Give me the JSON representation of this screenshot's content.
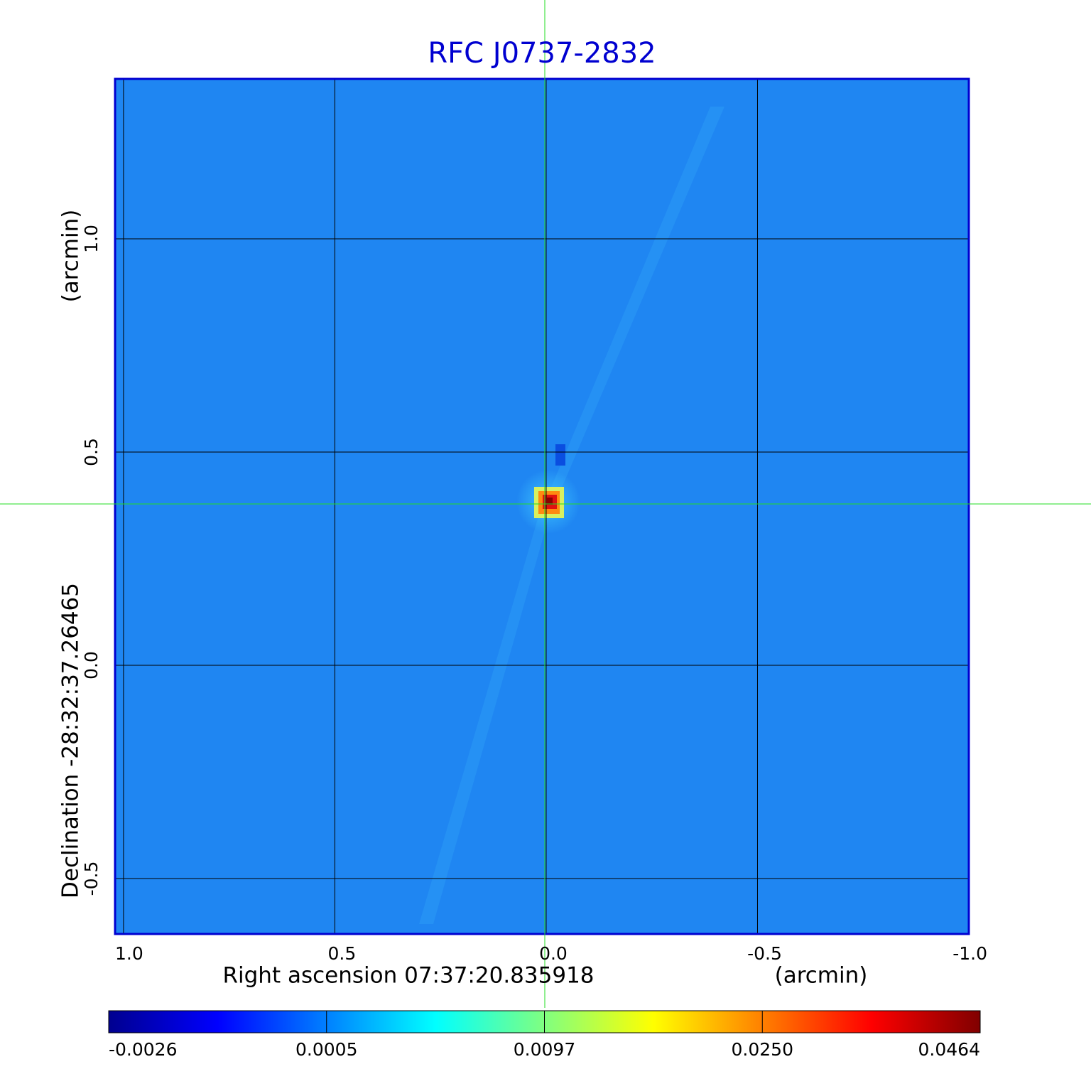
{
  "chart_data": {
    "type": "image",
    "title": "RFC J0737-2832",
    "x_label": "Right ascension  07:37:20.835918",
    "x_unit": "(arcmin)",
    "y_label": "Declination  -28:32:37.26465",
    "y_unit": "(arcmin)",
    "xlim": [
      1.02,
      -1.0
    ],
    "ylim": [
      -0.63,
      1.375
    ],
    "xticks": [
      {
        "value": 1,
        "label": "1.0"
      },
      0.5,
      {
        "value": 0,
        "label": "0.0"
      },
      -0.5,
      {
        "value": -1,
        "label": "-1.0"
      }
    ],
    "yticks": [
      -0.5,
      {
        "value": 0,
        "label": "0.0"
      },
      0.5,
      {
        "value": 1,
        "label": "1.0"
      }
    ],
    "grid": true,
    "colorbar_ticks": [
      -0.0026,
      0.0005,
      0.0097,
      {
        "value": 0.025,
        "label": "0.0250"
      },
      0.0464
    ],
    "colormap": [
      "#00008f",
      "#0000ff",
      "#0080ff",
      "#00ffff",
      "#80ff80",
      "#ffff00",
      "#ff8000",
      "#ff0000",
      "#800000"
    ]
  }
}
